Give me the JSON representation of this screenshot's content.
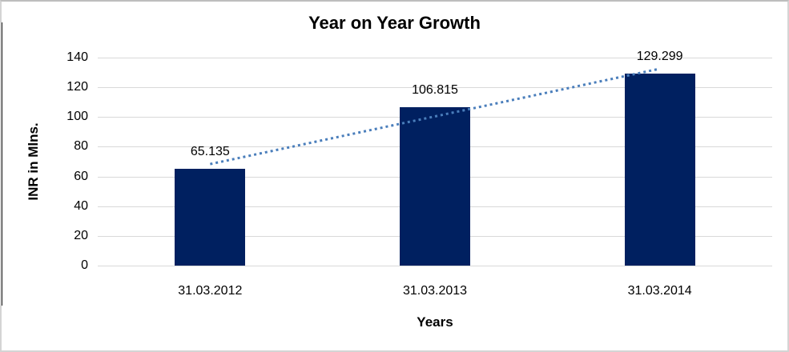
{
  "chart_data": {
    "type": "bar",
    "title": "Year on Year Growth",
    "categories": [
      "31.03.2012",
      "31.03.2013",
      "31.03.2014"
    ],
    "values": [
      65.135,
      106.815,
      129.299
    ],
    "data_labels": [
      "65.135",
      "106.815",
      "129.299"
    ],
    "xlabel": "Years",
    "ylabel": "INR in Mlns.",
    "ylim": [
      0,
      140
    ],
    "yticks": [
      0,
      20,
      40,
      60,
      80,
      100,
      120,
      140
    ],
    "grid": true,
    "legend": "none",
    "bar_color": "#002060",
    "gridline_color": "#d9d9d9",
    "trendline": {
      "type": "linear",
      "style": "dotted",
      "color": "#4a7ebb"
    }
  }
}
